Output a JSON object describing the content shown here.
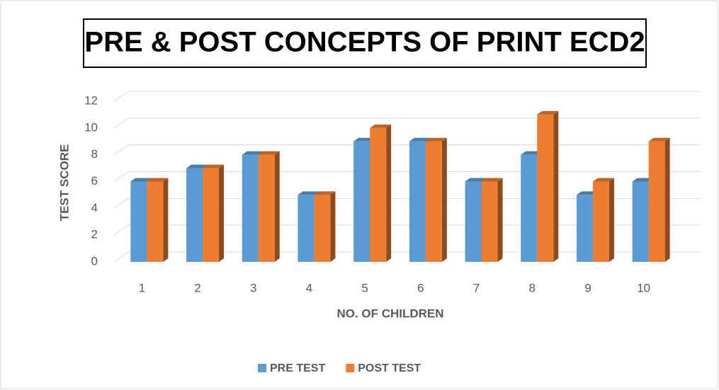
{
  "chart_data": {
    "type": "bar3d",
    "title": "PRE & POST CONCEPTS OF PRINT ECD2",
    "x_label": "NO. OF CHILDREN",
    "y_label": "TEST SCORE",
    "categories": [
      "1",
      "2",
      "3",
      "4",
      "5",
      "6",
      "7",
      "8",
      "9",
      "10"
    ],
    "series": [
      {
        "name": "PRE TEST",
        "color": "#5b9bd5",
        "values": [
          6,
          7,
          8,
          5,
          9,
          9,
          6,
          8,
          5,
          6
        ]
      },
      {
        "name": "POST TEST",
        "color": "#ed7d31",
        "values": [
          6,
          7,
          8,
          5,
          10,
          9,
          6,
          11,
          6,
          9
        ]
      }
    ],
    "ylim": [
      0,
      12
    ],
    "yticks": [
      0,
      2,
      4,
      6,
      8,
      10,
      12
    ],
    "grid": true,
    "legend": "bottom"
  }
}
